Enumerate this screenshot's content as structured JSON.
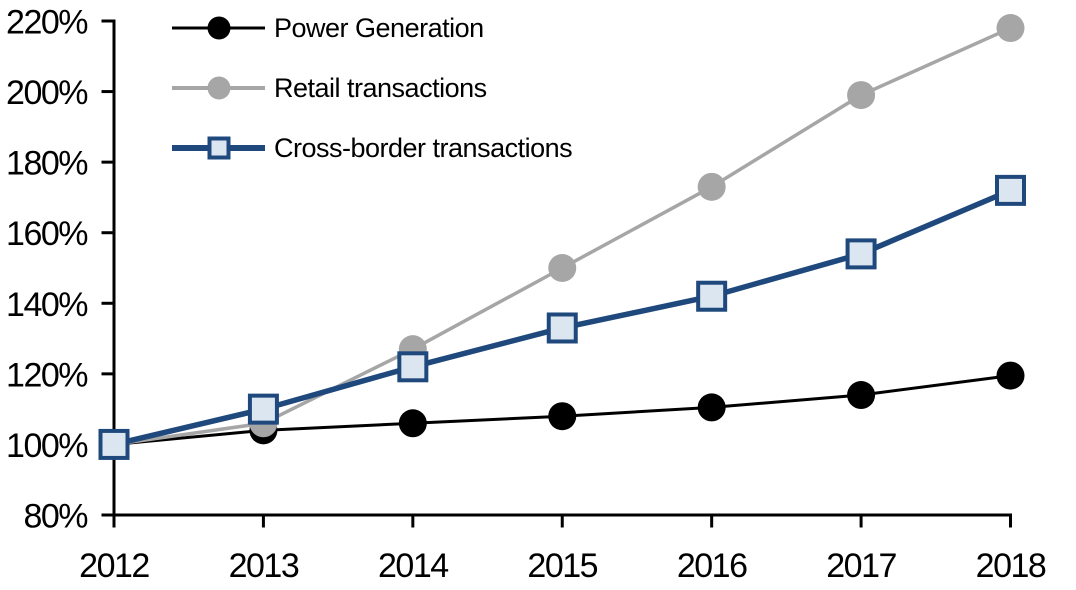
{
  "chart_data": {
    "type": "line",
    "title": "",
    "xlabel": "",
    "ylabel": "",
    "x": [
      "2012",
      "2013",
      "2014",
      "2015",
      "2016",
      "2017",
      "2018"
    ],
    "ylim": [
      80,
      220
    ],
    "ytick_step": 20,
    "ytick_suffix": "%",
    "grid": false,
    "legend_position": "top-left",
    "background_color": "#ffffff",
    "axis_color": "#000000",
    "series": [
      {
        "name": "Power Generation",
        "color": "#000000",
        "marker": "circle",
        "marker_fill": "#000000",
        "line_width": 3,
        "values": [
          100,
          104,
          106,
          108,
          110.5,
          114,
          119.5
        ]
      },
      {
        "name": "Retail transactions",
        "color": "#a6a6a6",
        "marker": "circle",
        "marker_fill": "#a6a6a6",
        "line_width": 3.5,
        "values": [
          100,
          106,
          127,
          150,
          173,
          199,
          218
        ]
      },
      {
        "name": "Cross-border transactions",
        "color": "#1f497d",
        "marker": "square",
        "marker_fill": "#dce6f1",
        "line_width": 5.5,
        "values": [
          100,
          110,
          122,
          133,
          142,
          154,
          172
        ]
      }
    ]
  }
}
